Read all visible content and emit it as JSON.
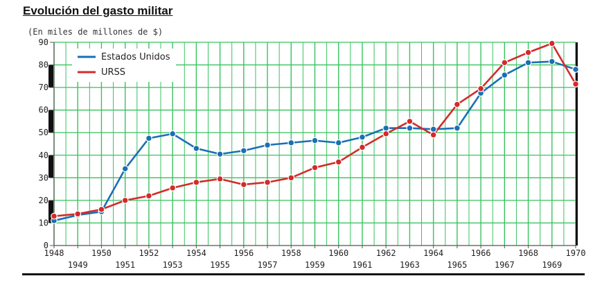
{
  "title": "Evolución del gasto militar",
  "unit_label": "(En miles de millones de $)",
  "chart_data": {
    "type": "line",
    "x": [
      1948,
      1949,
      1950,
      1951,
      1952,
      1953,
      1954,
      1955,
      1956,
      1957,
      1958,
      1959,
      1960,
      1961,
      1962,
      1963,
      1964,
      1965,
      1966,
      1967,
      1968,
      1969,
      1970
    ],
    "series": [
      {
        "name": "Estados Unidos",
        "color": "#1a6fb5",
        "values": [
          11,
          13.5,
          15,
          34,
          47.5,
          49.5,
          43,
          40.5,
          42,
          44.5,
          45.5,
          46.5,
          45.5,
          48,
          52,
          52,
          51.5,
          52,
          67.5,
          75.5,
          81,
          81.5,
          78
        ]
      },
      {
        "name": "URSS",
        "color": "#d42a2a",
        "values": [
          13,
          14,
          16,
          20,
          22,
          25.5,
          28,
          29.5,
          27,
          28,
          30,
          34.5,
          37,
          43.5,
          49.5,
          55,
          49,
          62.5,
          69.5,
          81,
          85.5,
          89.5,
          71.5
        ]
      }
    ],
    "ylim": [
      0,
      90
    ],
    "yticks": [
      0,
      10,
      20,
      30,
      40,
      50,
      60,
      70,
      80,
      90
    ],
    "xlim": [
      1948,
      1970
    ],
    "grid": true,
    "grid_color": "#38c25e",
    "legend": "top-left"
  }
}
